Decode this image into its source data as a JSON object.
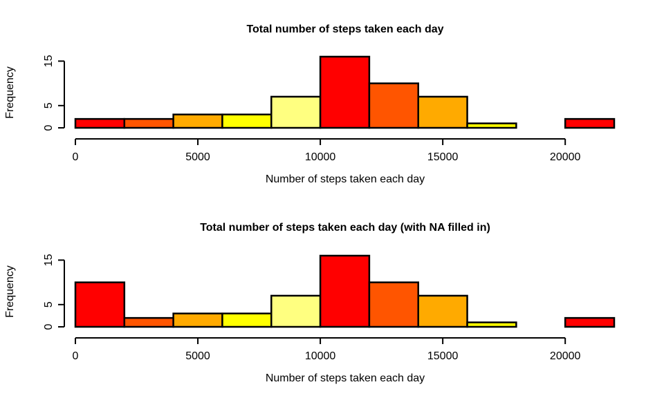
{
  "chart_data": [
    {
      "type": "bar",
      "title": "Total number of steps taken each day",
      "xlabel": "Number of steps taken each day",
      "ylabel": "Frequency",
      "bin_edges": [
        0,
        2000,
        4000,
        6000,
        8000,
        10000,
        12000,
        14000,
        16000,
        18000,
        20000,
        22000
      ],
      "values": [
        2,
        2,
        3,
        3,
        7,
        16,
        10,
        7,
        1,
        0,
        2
      ],
      "bar_colors": [
        "#FF0000",
        "#FF5500",
        "#FFAA00",
        "#FFFF00",
        "#FFFF80",
        "#FF0000",
        "#FF5500",
        "#FFAA00",
        "#FFFF00",
        "#FFFF80",
        "#FF0000"
      ],
      "xticks": [
        0,
        5000,
        10000,
        15000,
        20000
      ],
      "yticks": [
        0,
        5,
        15
      ],
      "xlim": [
        0,
        22000
      ],
      "ylim": [
        0,
        16
      ],
      "grid": false
    },
    {
      "type": "bar",
      "title": "Total number of steps taken each day (with NA filled in)",
      "xlabel": "Number of steps taken each day",
      "ylabel": "Frequency",
      "bin_edges": [
        0,
        2000,
        4000,
        6000,
        8000,
        10000,
        12000,
        14000,
        16000,
        18000,
        20000,
        22000
      ],
      "values": [
        10,
        2,
        3,
        3,
        7,
        16,
        10,
        7,
        1,
        0,
        2
      ],
      "bar_colors": [
        "#FF0000",
        "#FF5500",
        "#FFAA00",
        "#FFFF00",
        "#FFFF80",
        "#FF0000",
        "#FF5500",
        "#FFAA00",
        "#FFFF00",
        "#FFFF80",
        "#FF0000"
      ],
      "xticks": [
        0,
        5000,
        10000,
        15000,
        20000
      ],
      "yticks": [
        0,
        5,
        15
      ],
      "xlim": [
        0,
        22000
      ],
      "ylim": [
        0,
        16
      ],
      "grid": false
    }
  ]
}
